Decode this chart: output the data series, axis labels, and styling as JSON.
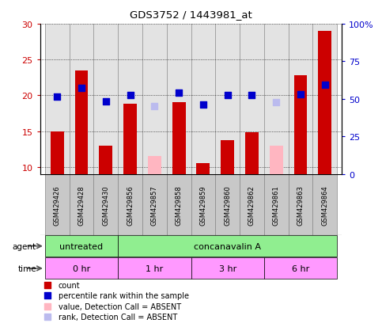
{
  "title": "GDS3752 / 1443981_at",
  "samples": [
    "GSM429426",
    "GSM429428",
    "GSM429430",
    "GSM429856",
    "GSM429857",
    "GSM429858",
    "GSM429859",
    "GSM429860",
    "GSM429862",
    "GSM429861",
    "GSM429863",
    "GSM429864"
  ],
  "red_bars": [
    15.0,
    23.5,
    13.0,
    18.8,
    null,
    19.0,
    10.5,
    13.8,
    14.8,
    null,
    22.8,
    29.0
  ],
  "pink_bars": [
    null,
    null,
    null,
    null,
    11.5,
    null,
    null,
    null,
    null,
    13.0,
    null,
    null
  ],
  "blue_dots": [
    19.8,
    21.0,
    19.2,
    20.0,
    null,
    20.4,
    18.7,
    20.0,
    20.0,
    null,
    20.2,
    21.5
  ],
  "lavender_dots": [
    null,
    null,
    null,
    null,
    18.5,
    null,
    null,
    null,
    null,
    19.0,
    null,
    null
  ],
  "ylim_left": [
    9,
    30
  ],
  "ylim_right": [
    0,
    100
  ],
  "yticks_left": [
    10,
    15,
    20,
    25,
    30
  ],
  "yticks_right": [
    0,
    25,
    50,
    75,
    100
  ],
  "ytick_labels_right": [
    "0",
    "25",
    "50",
    "75",
    "100%"
  ],
  "bar_width": 0.55,
  "dot_size": 35,
  "grid_color": "black",
  "background_color": "white",
  "left_axis_color": "#CC0000",
  "right_axis_color": "#0000CC",
  "sample_box_color": "#C8C8C8",
  "agent_green": "#90EE90",
  "time_pink": "#FF99FF",
  "legend_items": [
    {
      "color": "#CC0000",
      "label": "count"
    },
    {
      "color": "#0000CC",
      "label": "percentile rank within the sample"
    },
    {
      "color": "#FFB6C1",
      "label": "value, Detection Call = ABSENT"
    },
    {
      "color": "#BBBBEE",
      "label": "rank, Detection Call = ABSENT"
    }
  ]
}
